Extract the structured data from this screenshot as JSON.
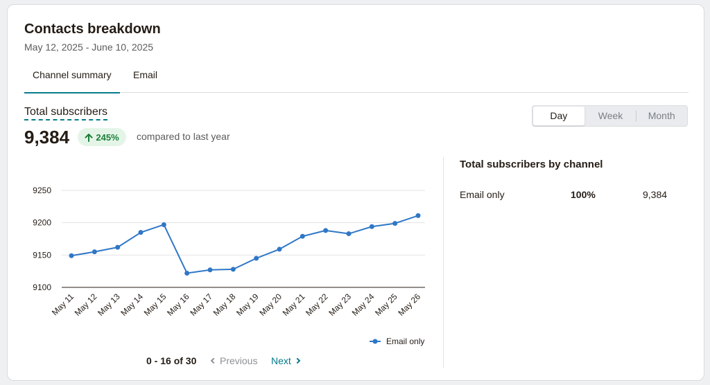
{
  "card": {
    "title": "Contacts breakdown",
    "date_range": "May 12, 2025 - June 10, 2025"
  },
  "tabs": [
    {
      "label": "Channel summary",
      "active": true
    },
    {
      "label": "Email",
      "active": false
    }
  ],
  "metric": {
    "label": "Total subscribers",
    "value": "9,384",
    "change": "245%",
    "compare_text": "compared to last year"
  },
  "period_selector": {
    "options": [
      "Day",
      "Week",
      "Month"
    ],
    "selected": "Day"
  },
  "by_channel": {
    "title": "Total subscribers by channel",
    "rows": [
      {
        "channel": "Email only",
        "percent": "100%",
        "count": "9,384"
      }
    ]
  },
  "pagination": {
    "range": "0 - 16 of 30",
    "previous_label": "Previous",
    "next_label": "Next"
  },
  "colors": {
    "accent": "#047b8a",
    "series": "#2f77c6",
    "positive": "#1a7f37"
  },
  "chart_data": {
    "type": "line",
    "categories": [
      "May 11",
      "May 12",
      "May 13",
      "May 14",
      "May 15",
      "May 16",
      "May 17",
      "May 18",
      "May 19",
      "May 20",
      "May 21",
      "May 22",
      "May 23",
      "May 24",
      "May 25",
      "May 26"
    ],
    "series": [
      {
        "name": "Email only",
        "values": [
          9149,
          9155,
          9162,
          9185,
          9197,
          9122,
          9127,
          9128,
          9145,
          9159,
          9179,
          9188,
          9183,
          9194,
          9199,
          9211
        ]
      }
    ],
    "yticks": [
      9100,
      9150,
      9200,
      9250
    ],
    "ylim": [
      9100,
      9250
    ],
    "grid": true,
    "legend_position": "bottom-right"
  }
}
